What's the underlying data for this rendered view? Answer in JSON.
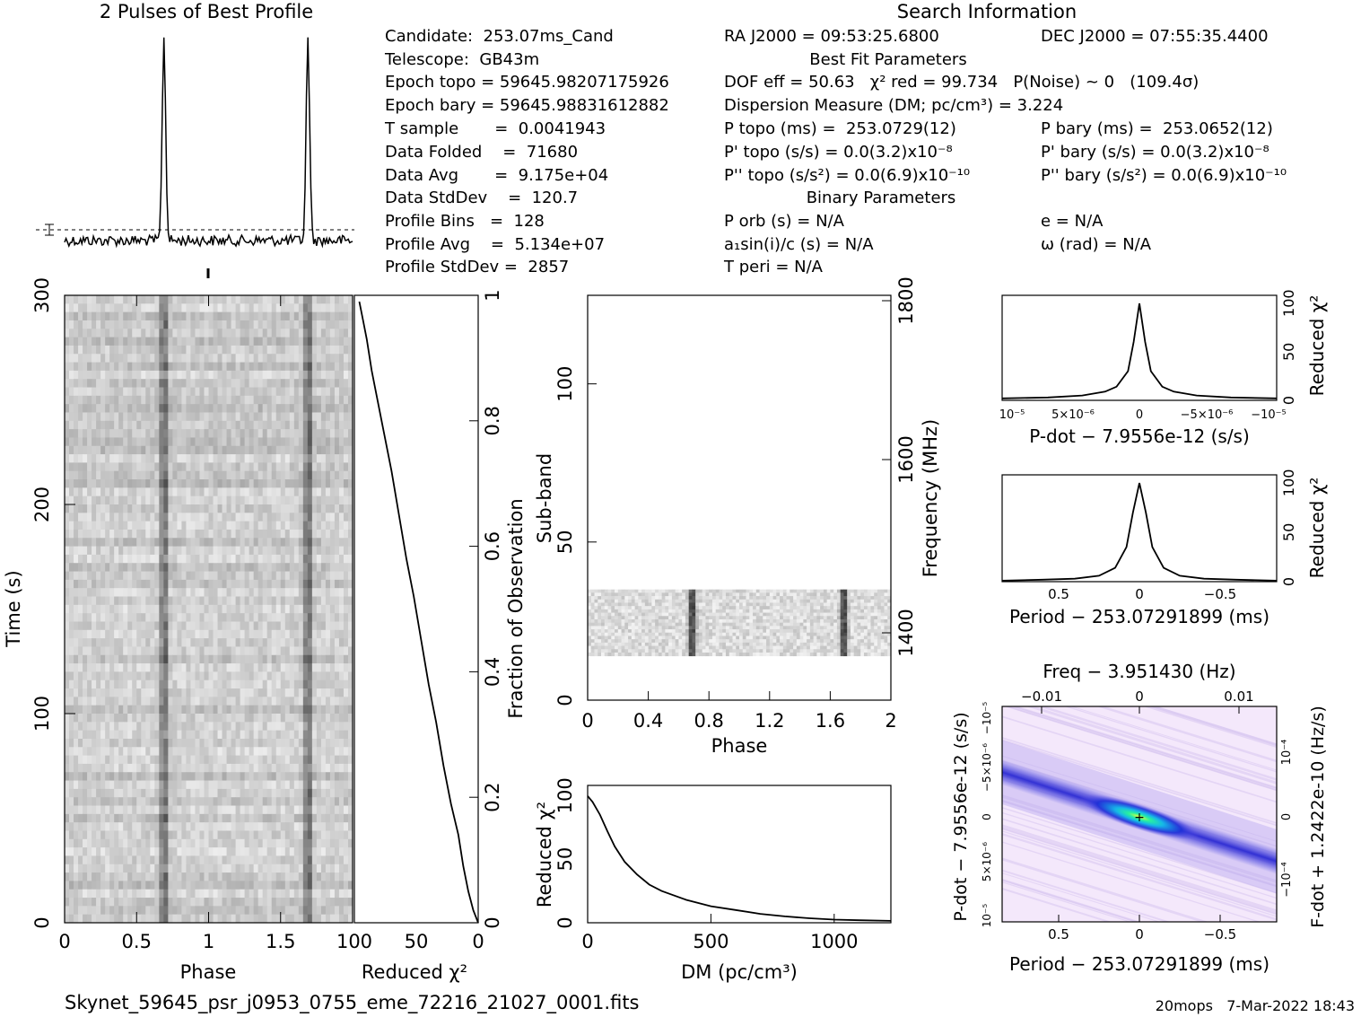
{
  "profile": {
    "title": "2 Pulses of Best Profile"
  },
  "search_info": {
    "title": "Search Information",
    "ra": "RA J2000 = 09:53:25.6800",
    "dec": "DEC J2000 = 07:55:35.4400",
    "candidate": "Candidate:  253.07ms_Cand",
    "telescope": "Telescope:  GB43m",
    "epoch_topo": "Epoch topo = 59645.98207175926",
    "epoch_bary": "Epoch bary = 59645.98831612882",
    "t_sample": "T sample       =  0.0041943",
    "data_folded": "Data Folded    =  71680",
    "data_avg": "Data Avg       =  9.175e+04",
    "data_stddev": "Data StdDev    =  120.7",
    "profile_bins": "Profile Bins   =  128",
    "profile_avg": "Profile Avg    =  5.134e+07",
    "profile_stddev": "Profile StdDev =  2857",
    "best_fit_title": "Best Fit Parameters",
    "dof": "DOF eff = 50.63   χ² red = 99.734   P(Noise) ~ 0   (109.4σ)",
    "dm": "Dispersion Measure (DM; pc/cm³) = 3.224",
    "p_topo": "P topo (ms) =  253.0729(12)",
    "p_bary": "P bary (ms) =  253.0652(12)",
    "pd_topo": "P' topo (s/s) = 0.0(3.2)x10⁻⁸",
    "pd_bary": "P' bary (s/s) = 0.0(3.2)x10⁻⁸",
    "pdd_topo": "P'' topo (s/s²) = 0.0(6.9)x10⁻¹⁰",
    "pdd_bary": "P'' bary (s/s²) = 0.0(6.9)x10⁻¹⁰",
    "binary_title": "Binary Parameters",
    "p_orb": "P orb (s) = N/A",
    "a1sini": "a₁sin(i)/c (s) = N/A",
    "t_peri": "T peri = N/A",
    "ecc": "e = N/A",
    "omega": "ω (rad) = N/A"
  },
  "footer": {
    "filename": "Skynet_59645_psr_j0953_0755_eme_72216_21027_0001.fits",
    "stamp": "20mops   7-Mar-2022 18:43"
  },
  "chart_data": [
    {
      "id": "time_phase",
      "type": "heatmap",
      "xlabel": "Phase",
      "ylabel": "Time (s)",
      "xlim": [
        0,
        2
      ],
      "ylim": [
        0,
        300
      ],
      "xticks": [
        "0",
        "0.5",
        "1",
        "1.5"
      ],
      "yticks": [
        "0",
        "100",
        "200",
        "300"
      ],
      "pulse_phases": [
        0.69,
        1.69
      ]
    },
    {
      "id": "time_chi2",
      "type": "line",
      "xlabel": "Reduced χ²",
      "ylabel": "Fraction of Observation",
      "xlim": [
        100,
        0
      ],
      "ylim": [
        0,
        1
      ],
      "xticks": [
        "100",
        "50",
        "0"
      ],
      "yticks": [
        "0",
        "0.2",
        "0.4",
        "0.6",
        "0.8",
        "1"
      ],
      "x": [
        0,
        4,
        8,
        12,
        16,
        22,
        28,
        34,
        40,
        46,
        52,
        58,
        64,
        70,
        76,
        82,
        86,
        90,
        93,
        96
      ],
      "y": [
        0,
        0.02,
        0.05,
        0.09,
        0.14,
        0.19,
        0.25,
        0.32,
        0.38,
        0.45,
        0.52,
        0.58,
        0.65,
        0.72,
        0.78,
        0.84,
        0.88,
        0.93,
        0.96,
        0.99
      ]
    },
    {
      "id": "subband_phase",
      "type": "heatmap",
      "xlabel": "Phase",
      "ylabel": "Sub-band",
      "y2label": "Frequency (MHz)",
      "xlim": [
        0,
        2
      ],
      "ylim": [
        0,
        128
      ],
      "xticks": [
        "0",
        "0.4",
        "0.8",
        "1.2",
        "1.6",
        "2"
      ],
      "yticks": [
        "0",
        "50",
        "100"
      ],
      "y2ticks": [
        "1400",
        "1600",
        "1800"
      ],
      "band_range": [
        14,
        35
      ],
      "pulse_phases": [
        0.69,
        1.69
      ]
    },
    {
      "id": "dm_chi2",
      "type": "line",
      "xlabel": "DM (pc/cm³)",
      "ylabel": "Reduced χ²",
      "xlim": [
        0,
        1230
      ],
      "ylim": [
        0,
        108
      ],
      "xticks": [
        "0",
        "500",
        "1000"
      ],
      "yticks": [
        "0",
        "50",
        "100"
      ],
      "x": [
        0,
        20,
        50,
        80,
        110,
        150,
        200,
        250,
        300,
        400,
        500,
        600,
        700,
        800,
        900,
        1000,
        1100,
        1230
      ],
      "y": [
        99.7,
        95,
        85,
        72,
        60,
        48,
        38,
        30,
        25,
        18,
        13,
        10,
        7,
        5,
        3.5,
        2.5,
        2,
        1.5
      ]
    },
    {
      "id": "pdot_chi2",
      "type": "line",
      "xlabel": "P-dot − 7.9556e-12 (s/s)",
      "ylabel": "Reduced χ²",
      "xlim": [
        1.2e-05,
        -1.2e-05
      ],
      "ylim": [
        0,
        108
      ],
      "xticks": [
        "10⁻⁵",
        "5×10⁻⁶",
        "0",
        "−5×10⁻⁶",
        "−10⁻⁵"
      ],
      "yticks": [
        "0",
        "50",
        "100"
      ],
      "x": [
        1.2e-05,
        8e-06,
        5e-06,
        3e-06,
        2e-06,
        1e-06,
        5e-07,
        0,
        -5e-07,
        -1e-06,
        -2e-06,
        -3e-06,
        -5e-06,
        -8e-06,
        -1.2e-05
      ],
      "y": [
        2,
        3,
        5,
        9,
        14,
        30,
        60,
        99.7,
        60,
        30,
        14,
        9,
        5,
        3,
        2
      ]
    },
    {
      "id": "period_chi2",
      "type": "line",
      "xlabel": "Period − 253.07291899 (ms)",
      "ylabel": "Reduced χ²",
      "xlim": [
        0.85,
        -0.85
      ],
      "ylim": [
        0,
        108
      ],
      "xticks": [
        "0.5",
        "0",
        "−0.5"
      ],
      "yticks": [
        "0",
        "50",
        "100"
      ],
      "x": [
        0.85,
        0.6,
        0.4,
        0.25,
        0.15,
        0.08,
        0.04,
        0,
        -0.04,
        -0.08,
        -0.15,
        -0.25,
        -0.4,
        -0.6,
        -0.85
      ],
      "y": [
        1,
        2,
        3,
        6,
        14,
        35,
        70,
        99.7,
        70,
        35,
        14,
        6,
        3,
        2,
        1
      ]
    },
    {
      "id": "ppdot_plane",
      "type": "heatmap",
      "xlabel": "Period − 253.07291899 (ms)",
      "ylabel": "P-dot − 7.9556e-12 (s/s)",
      "x2label": "Freq − 3.951430 (Hz)",
      "y2label": "F-dot + 1.2422e-10 (Hz/s)",
      "xlim": [
        0.85,
        -0.85
      ],
      "xticks": [
        "0.5",
        "0",
        "−0.5"
      ],
      "x2ticks": [
        "−0.01",
        "0",
        "0.01"
      ],
      "yticks": [
        "10⁻⁵",
        "5×10⁻⁶",
        "0",
        "−5×10⁻⁶",
        "−10⁻⁵"
      ],
      "y2ticks": [
        "−10⁻⁴",
        "0",
        "10⁻⁴"
      ]
    }
  ]
}
